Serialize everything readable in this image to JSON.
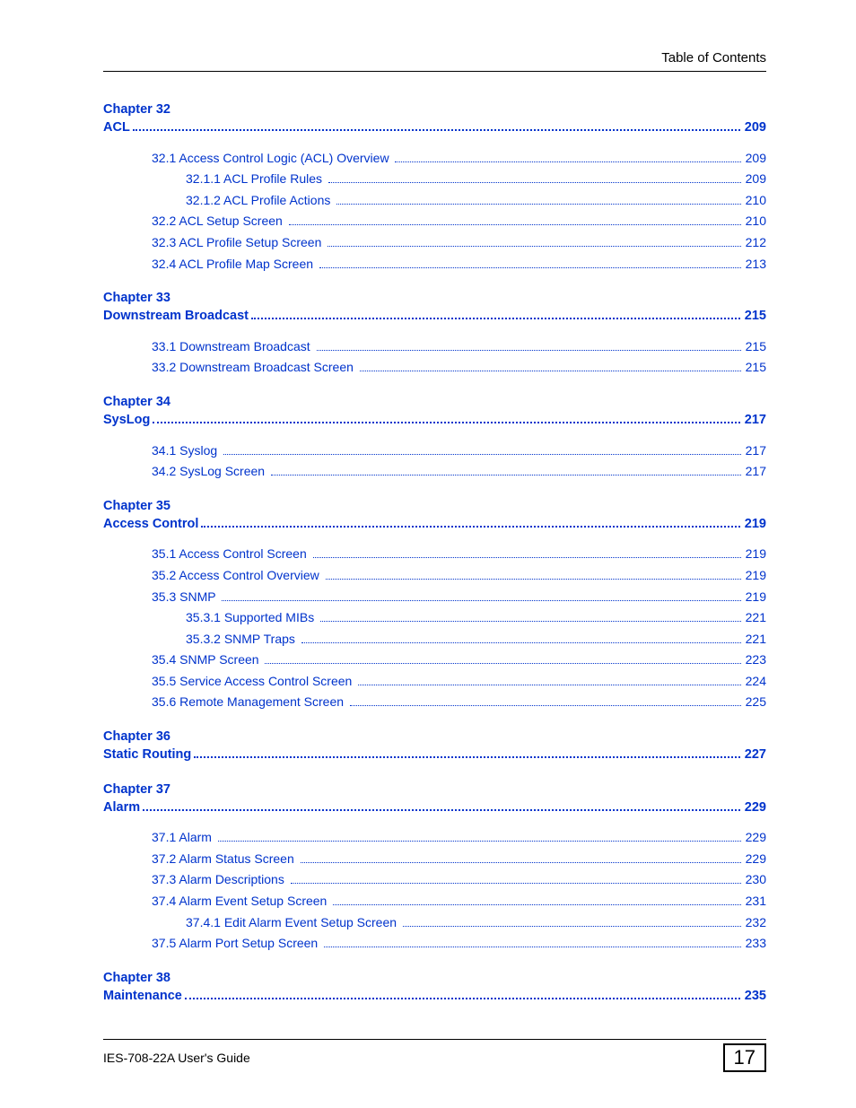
{
  "colors": {
    "link": "#0033cc",
    "text": "#000000",
    "background": "#ffffff",
    "rule": "#000000"
  },
  "header": {
    "right": "Table of Contents"
  },
  "footer": {
    "left": "IES-708-22A User's Guide",
    "pageNumber": "17"
  },
  "toc": [
    {
      "chapterLabel": "Chapter  32",
      "title": "ACL",
      "page": "209",
      "entries": [
        {
          "level": 1,
          "label": "32.1 Access Control Logic (ACL) Overview ",
          "page": " 209"
        },
        {
          "level": 2,
          "label": "32.1.1 ACL Profile Rules ",
          "page": " 209"
        },
        {
          "level": 2,
          "label": "32.1.2 ACL Profile Actions ",
          "page": " 210"
        },
        {
          "level": 1,
          "label": "32.2 ACL Setup Screen ",
          "page": " 210"
        },
        {
          "level": 1,
          "label": "32.3 ACL Profile Setup Screen ",
          "page": " 212"
        },
        {
          "level": 1,
          "label": "32.4 ACL Profile Map Screen ",
          "page": " 213"
        }
      ]
    },
    {
      "chapterLabel": "Chapter  33",
      "title": "Downstream Broadcast",
      "page": "215",
      "entries": [
        {
          "level": 1,
          "label": "33.1 Downstream Broadcast ",
          "page": " 215"
        },
        {
          "level": 1,
          "label": "33.2 Downstream Broadcast Screen ",
          "page": " 215"
        }
      ]
    },
    {
      "chapterLabel": "Chapter  34",
      "title": "SysLog",
      "page": "217",
      "entries": [
        {
          "level": 1,
          "label": "34.1 Syslog ",
          "page": " 217"
        },
        {
          "level": 1,
          "label": "34.2 SysLog Screen ",
          "page": " 217"
        }
      ]
    },
    {
      "chapterLabel": "Chapter  35",
      "title": "Access Control",
      "page": "219",
      "entries": [
        {
          "level": 1,
          "label": "35.1 Access Control Screen ",
          "page": " 219"
        },
        {
          "level": 1,
          "label": "35.2 Access Control Overview ",
          "page": " 219"
        },
        {
          "level": 1,
          "label": "35.3 SNMP ",
          "page": " 219"
        },
        {
          "level": 2,
          "label": "35.3.1 Supported MIBs ",
          "page": " 221"
        },
        {
          "level": 2,
          "label": "35.3.2 SNMP Traps ",
          "page": " 221"
        },
        {
          "level": 1,
          "label": "35.4 SNMP Screen ",
          "page": " 223"
        },
        {
          "level": 1,
          "label": "35.5 Service Access Control Screen ",
          "page": " 224"
        },
        {
          "level": 1,
          "label": "35.6 Remote Management Screen ",
          "page": " 225"
        }
      ]
    },
    {
      "chapterLabel": "Chapter  36",
      "title": "Static Routing",
      "page": "227",
      "entries": []
    },
    {
      "chapterLabel": "Chapter  37",
      "title": "Alarm",
      "page": "229",
      "entries": [
        {
          "level": 1,
          "label": "37.1 Alarm ",
          "page": " 229"
        },
        {
          "level": 1,
          "label": "37.2 Alarm Status Screen ",
          "page": " 229"
        },
        {
          "level": 1,
          "label": "37.3 Alarm Descriptions ",
          "page": " 230"
        },
        {
          "level": 1,
          "label": "37.4 Alarm Event Setup Screen ",
          "page": " 231"
        },
        {
          "level": 2,
          "label": "37.4.1 Edit Alarm Event Setup Screen ",
          "page": " 232"
        },
        {
          "level": 1,
          "label": "37.5 Alarm Port Setup Screen ",
          "page": " 233"
        }
      ]
    },
    {
      "chapterLabel": "Chapter  38",
      "title": "Maintenance",
      "page": "235",
      "entries": []
    }
  ]
}
